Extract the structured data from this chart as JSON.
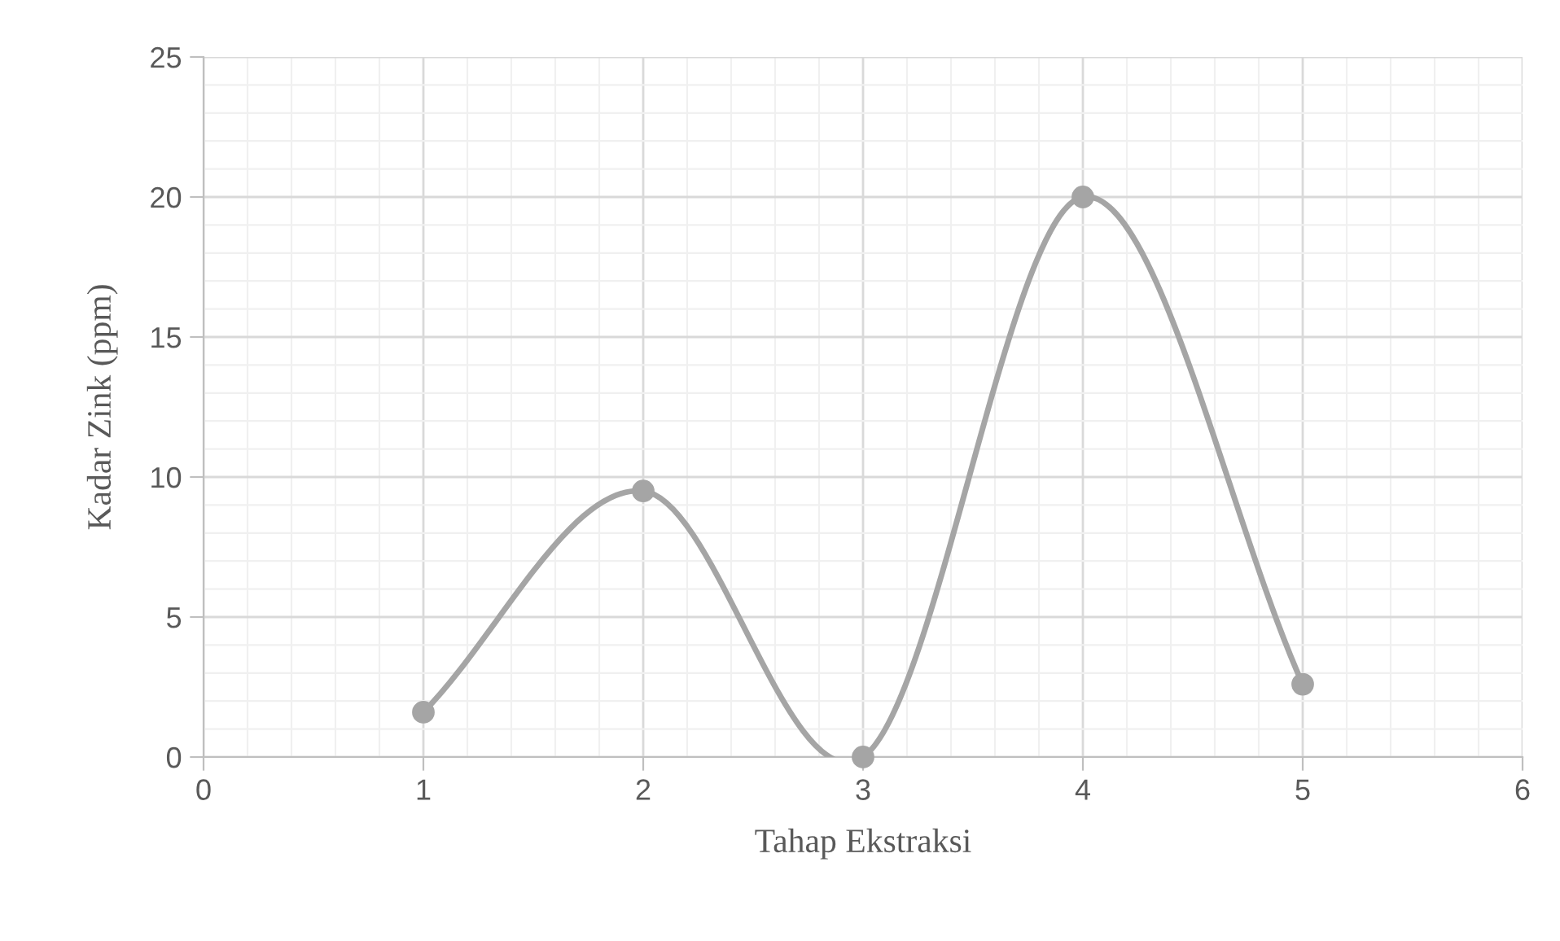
{
  "chart_data": {
    "type": "line",
    "xlabel": "Tahap Ekstraksi",
    "ylabel": "Kadar Zink (ppm)",
    "x": [
      1,
      2,
      3,
      4,
      5
    ],
    "series": [
      {
        "color": "#a5a5a5",
        "values": [
          1.6,
          9.5,
          0,
          20,
          2.6
        ]
      }
    ],
    "xlim": [
      0,
      6
    ],
    "xticks": [
      0,
      1,
      2,
      3,
      4,
      5,
      6
    ],
    "ylim": [
      0,
      25
    ],
    "yticks": [
      0,
      5,
      10,
      15,
      20,
      25
    ],
    "grid": true,
    "marker": "circle",
    "line_style": "solid"
  }
}
